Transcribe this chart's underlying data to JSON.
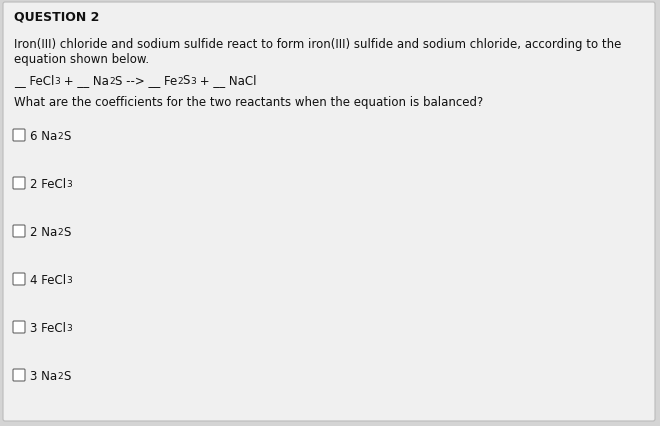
{
  "title": "QUESTION 2",
  "background_color": "#d4d4d4",
  "box_color": "#f0f0f0",
  "border_color": "#bbbbbb",
  "description_line1": "Iron(III) chloride and sodium sulfide react to form iron(III) sulfide and sodium chloride, according to the",
  "description_line2": "equation shown below.",
  "question_text": "What are the coefficients for the two reactants when the equation is balanced?",
  "checkbox_color": "#ffffff",
  "checkbox_border": "#666666",
  "text_color": "#111111",
  "font_size_title": 9.0,
  "font_size_body": 8.5,
  "font_size_options": 8.5
}
